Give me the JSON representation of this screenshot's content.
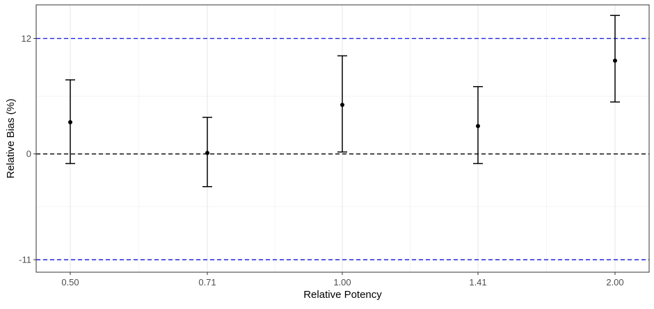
{
  "chart_data": {
    "type": "scatter",
    "title": "",
    "xlabel": "Relative Potency",
    "ylabel": "Relative Bias (%)",
    "categories": [
      "0.50",
      "0.71",
      "1.00",
      "1.41",
      "2.00"
    ],
    "y_ticks": [
      12,
      0,
      -11
    ],
    "y_tick_labels": [
      "12",
      "0",
      "-11"
    ],
    "ylim": [
      -12.3,
      15.5
    ],
    "grid": true,
    "points": [
      {
        "x": "0.50",
        "y": 3.3,
        "lower": -1.0,
        "upper": 7.7
      },
      {
        "x": "0.71",
        "y": 0.1,
        "lower": -3.4,
        "upper": 3.8
      },
      {
        "x": "1.00",
        "y": 5.1,
        "lower": 0.2,
        "upper": 10.2
      },
      {
        "x": "1.41",
        "y": 2.9,
        "lower": -1.0,
        "upper": 7.0
      },
      {
        "x": "2.00",
        "y": 9.7,
        "lower": 5.4,
        "upper": 14.4
      }
    ],
    "reference_lines": [
      {
        "y": 12,
        "color": "#2222dd",
        "style": "dashed"
      },
      {
        "y": 0,
        "color": "#000000",
        "style": "dashed"
      },
      {
        "y": -11,
        "color": "#2222dd",
        "style": "dashed"
      }
    ]
  }
}
